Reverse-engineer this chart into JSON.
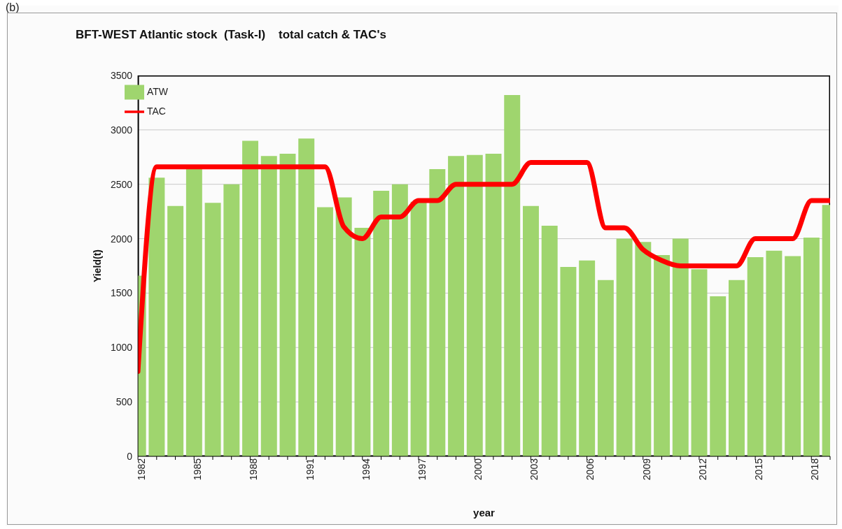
{
  "chart_data": {
    "type": "bar",
    "title": "BFT-WEST Atlantic stock  (Task-I)    total catch & TAC's",
    "xlabel": "year",
    "ylabel": "Yield(t)",
    "annotations": [
      "(b)"
    ],
    "x": [
      1982,
      1983,
      1984,
      1985,
      1986,
      1987,
      1988,
      1989,
      1990,
      1991,
      1992,
      1993,
      1994,
      1995,
      1996,
      1997,
      1998,
      1999,
      2000,
      2001,
      2002,
      2003,
      2004,
      2005,
      2006,
      2007,
      2008,
      2009,
      2010,
      2011,
      2012,
      2013,
      2014,
      2015,
      2016,
      2017,
      2018,
      2019
    ],
    "series": [
      {
        "name": "ATW",
        "color": "#9fd56e",
        "values": [
          1660,
          2560,
          2300,
          2640,
          2330,
          2500,
          2900,
          2760,
          2780,
          2920,
          2290,
          2380,
          2100,
          2440,
          2500,
          2340,
          2640,
          2760,
          2770,
          2780,
          3320,
          2300,
          2120,
          1740,
          1800,
          1620,
          2000,
          1970,
          1850,
          2000,
          1720,
          1470,
          1620,
          1830,
          1890,
          1840,
          2010,
          2310
        ]
      },
      {
        "name": "TAC",
        "type": "line",
        "color": "#ff0000",
        "values": [
          780,
          2660,
          2660,
          2660,
          2660,
          2660,
          2660,
          2660,
          2660,
          2660,
          2660,
          2110,
          2000,
          2200,
          2200,
          2350,
          2350,
          2500,
          2500,
          2500,
          2500,
          2700,
          2700,
          2700,
          2700,
          2100,
          2100,
          1900,
          1800,
          1750,
          1750,
          1750,
          1750,
          2000,
          2000,
          2000,
          2350,
          2350
        ]
      }
    ],
    "xlim": [
      1982,
      2019
    ],
    "xticks": [
      1982,
      {
        "value": 1983,
        "label": null
      },
      {
        "value": 1984,
        "label": null
      },
      1985,
      {
        "value": 1986,
        "label": null
      },
      {
        "value": 1987,
        "label": null
      },
      1988,
      {
        "value": 1989,
        "label": null
      },
      {
        "value": 1990,
        "label": null
      },
      1991,
      {
        "value": 1992,
        "label": null
      },
      {
        "value": 1993,
        "label": null
      },
      1994,
      {
        "value": 1995,
        "label": null
      },
      {
        "value": 1996,
        "label": null
      },
      1997,
      {
        "value": 1998,
        "label": null
      },
      {
        "value": 1999,
        "label": null
      },
      2000,
      {
        "value": 2001,
        "label": null
      },
      {
        "value": 2002,
        "label": null
      },
      2003,
      {
        "value": 2004,
        "label": null
      },
      {
        "value": 2005,
        "label": null
      },
      2006,
      {
        "value": 2007,
        "label": null
      },
      {
        "value": 2008,
        "label": null
      },
      2009,
      {
        "value": 2010,
        "label": null
      },
      {
        "value": 2011,
        "label": null
      },
      2012,
      {
        "value": 2013,
        "label": null
      },
      {
        "value": 2014,
        "label": null
      },
      2015,
      {
        "value": 2016,
        "label": null
      },
      {
        "value": 2017,
        "label": null
      },
      2018,
      {
        "value": 2019,
        "label": null
      }
    ],
    "ylim": [
      0,
      3500
    ],
    "yticks": [
      0,
      500,
      1000,
      1500,
      2000,
      2500,
      3000,
      3500
    ],
    "grid": "y",
    "legend": "top left",
    "marker": "none",
    "line_style": "solid"
  }
}
